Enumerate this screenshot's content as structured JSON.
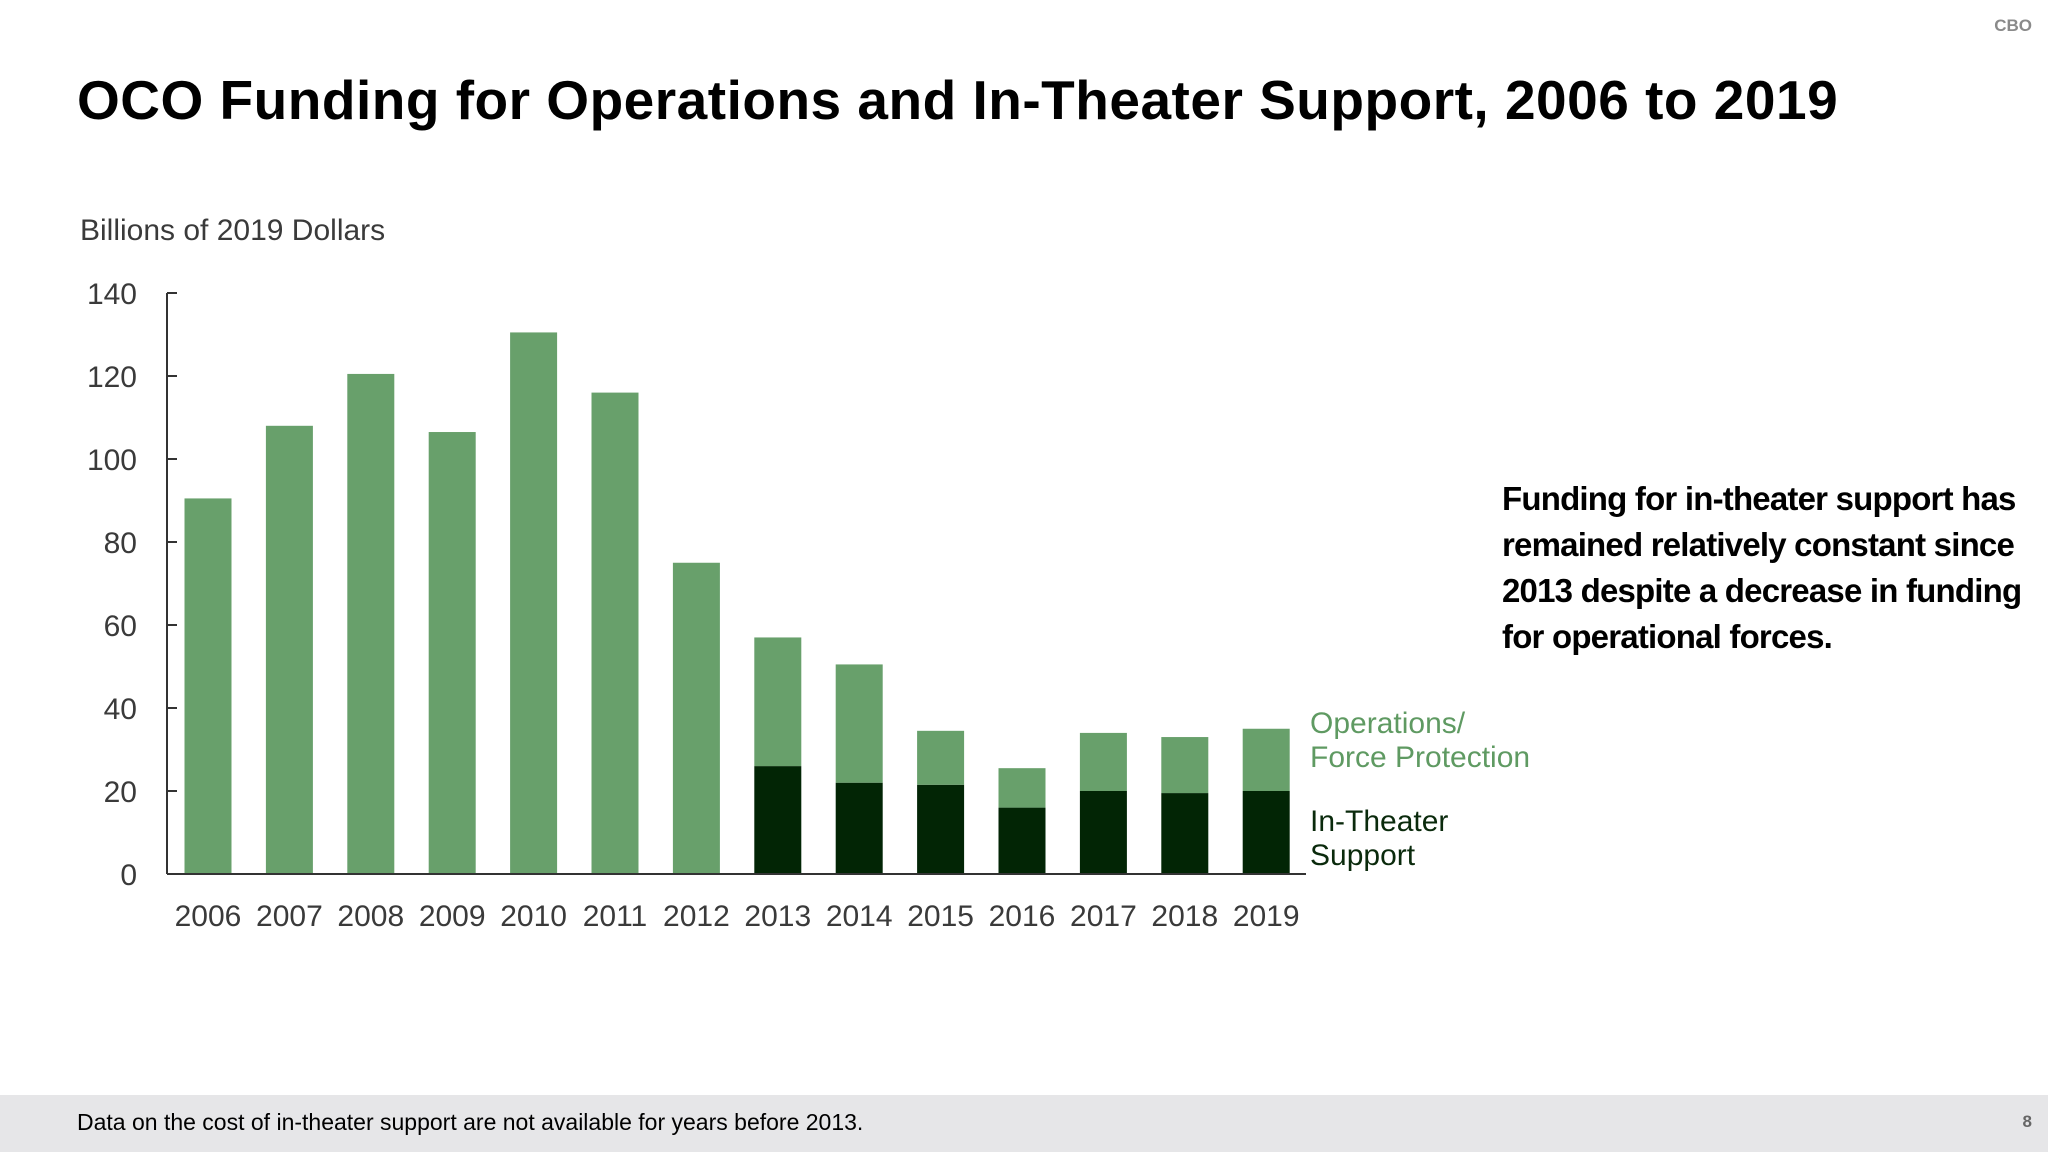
{
  "header": {
    "org_label": "CBO",
    "title": "OCO Funding for Operations and In-Theater Support, 2006 to 2019"
  },
  "chart_data": {
    "type": "bar",
    "stacked": true,
    "ylabel": "Billions of 2019 Dollars",
    "ylim": [
      0,
      140
    ],
    "yticks": [
      0,
      20,
      40,
      60,
      80,
      100,
      120,
      140
    ],
    "categories": [
      "2006",
      "2007",
      "2008",
      "2009",
      "2010",
      "2011",
      "2012",
      "2013",
      "2014",
      "2015",
      "2016",
      "2017",
      "2018",
      "2019"
    ],
    "series": [
      {
        "name": "In-Theater Support",
        "color": "#022505",
        "values": [
          0,
          0,
          0,
          0,
          0,
          0,
          0,
          26,
          22,
          21.5,
          16,
          20,
          19.5,
          20
        ]
      },
      {
        "name": "Operations/ Force Protection",
        "color": "#68a06b",
        "values": [
          90.5,
          108,
          120.5,
          106.5,
          130.5,
          116,
          75,
          31,
          28.5,
          13,
          9.5,
          14,
          13.5,
          15
        ]
      }
    ],
    "legend": {
      "placement": "right",
      "operations_line1": "Operations/",
      "operations_line2": "Force Protection",
      "support_line1": "In-Theater",
      "support_line2": "Support"
    },
    "grid": false
  },
  "annotation": {
    "text": "Funding for in-theater support has remained relatively constant since 2013 despite a decrease in funding for operational forces."
  },
  "footer": {
    "note": "Data on the cost of in-theater support are not available for years before 2013.",
    "page_number": "8"
  }
}
